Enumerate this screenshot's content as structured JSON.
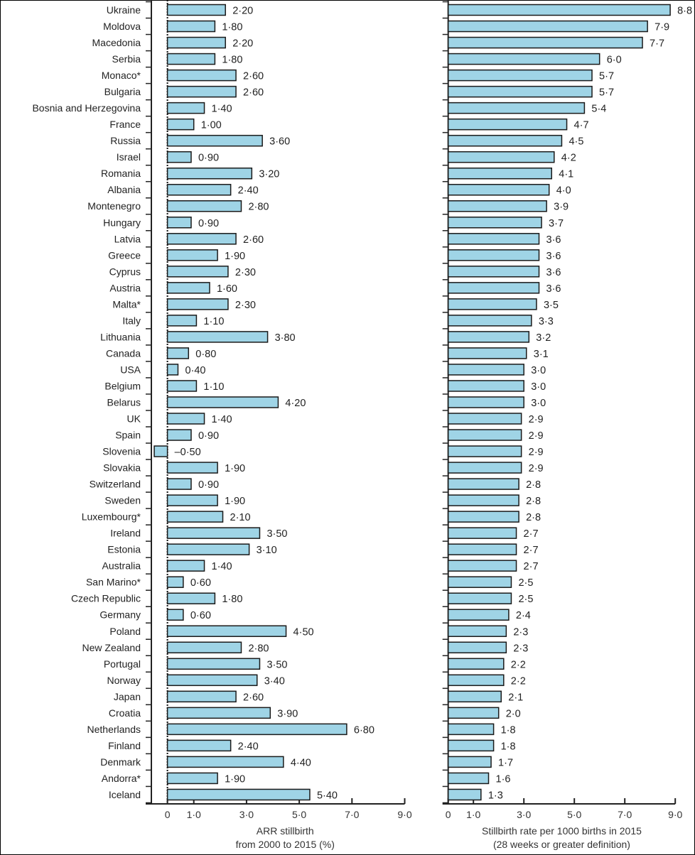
{
  "colors": {
    "bar_fill": "#9fd4e6",
    "bar_stroke": "#1a1a1a",
    "axis": "#222222"
  },
  "chart_data": [
    {
      "type": "bar",
      "orientation": "horizontal",
      "xlabel": [
        "ARR stillbirth",
        "from 2000 to 2015 (%)"
      ],
      "xlim": [
        -0.6,
        9.0
      ],
      "xticks": [
        0,
        1,
        3,
        5,
        7,
        9
      ],
      "xtick_labels": [
        "0",
        "1·0",
        "3·0",
        "5·0",
        "7·0",
        "9·0"
      ],
      "categories": [
        "Ukraine",
        "Moldova",
        "Macedonia",
        "Serbia",
        "Monaco*",
        "Bulgaria",
        "Bosnia and Herzegovina",
        "France",
        "Russia",
        "Israel",
        "Romania",
        "Albania",
        "Montenegro",
        "Hungary",
        "Latvia",
        "Greece",
        "Cyprus",
        "Austria",
        "Malta*",
        "Italy",
        "Lithuania",
        "Canada",
        "USA",
        "Belgium",
        "Belarus",
        "UK",
        "Spain",
        "Slovenia",
        "Slovakia",
        "Switzerland",
        "Sweden",
        "Luxembourg*",
        "Ireland",
        "Estonia",
        "Australia",
        "San Marino*",
        "Czech Republic",
        "Germany",
        "Poland",
        "New Zealand",
        "Portugal",
        "Norway",
        "Japan",
        "Croatia",
        "Netherlands",
        "Finland",
        "Denmark",
        "Andorra*",
        "Iceland"
      ],
      "values": [
        2.2,
        1.8,
        2.2,
        1.8,
        2.6,
        2.6,
        1.4,
        1.0,
        3.6,
        0.9,
        3.2,
        2.4,
        2.8,
        0.9,
        2.6,
        1.9,
        2.3,
        1.6,
        2.3,
        1.1,
        3.8,
        0.8,
        0.4,
        1.1,
        4.2,
        1.4,
        0.9,
        -0.5,
        1.9,
        0.9,
        1.9,
        2.1,
        3.5,
        3.1,
        1.4,
        0.6,
        1.8,
        0.6,
        4.5,
        2.8,
        3.5,
        3.4,
        2.6,
        3.9,
        6.8,
        2.4,
        4.4,
        1.9,
        5.4
      ],
      "value_labels": [
        "2·20",
        "1·80",
        "2·20",
        "1·80",
        "2·60",
        "2·60",
        "1·40",
        "1·00",
        "3·60",
        "0·90",
        "3·20",
        "2·40",
        "2·80",
        "0·90",
        "2·60",
        "1·90",
        "2·30",
        "1·60",
        "2·30",
        "1·10",
        "3·80",
        "0·80",
        "0·40",
        "1·10",
        "4·20",
        "1·40",
        "0·90",
        "–0·50",
        "1·90",
        "0·90",
        "1·90",
        "2·10",
        "3·50",
        "3·10",
        "1·40",
        "0·60",
        "1·80",
        "0·60",
        "4·50",
        "2·80",
        "3·50",
        "3·40",
        "2·60",
        "3·90",
        "6·80",
        "2·40",
        "4·40",
        "1·90",
        "5·40"
      ],
      "zero_line": "dotted"
    },
    {
      "type": "bar",
      "orientation": "horizontal",
      "xlabel": [
        "Stillbirth rate per 1000 births in 2015",
        "(28 weeks or greater definition)"
      ],
      "xlim": [
        0,
        9.0
      ],
      "xticks": [
        0,
        1,
        3,
        5,
        7,
        9
      ],
      "xtick_labels": [
        "0",
        "1·0",
        "3·0",
        "5·0",
        "7·0",
        "9·0"
      ],
      "values": [
        8.8,
        7.9,
        7.7,
        6.0,
        5.7,
        5.7,
        5.4,
        4.7,
        4.5,
        4.2,
        4.1,
        4.0,
        3.9,
        3.7,
        3.6,
        3.6,
        3.6,
        3.6,
        3.5,
        3.3,
        3.2,
        3.1,
        3.0,
        3.0,
        3.0,
        2.9,
        2.9,
        2.9,
        2.9,
        2.8,
        2.8,
        2.8,
        2.7,
        2.7,
        2.7,
        2.5,
        2.5,
        2.4,
        2.3,
        2.3,
        2.2,
        2.2,
        2.1,
        2.0,
        1.8,
        1.8,
        1.7,
        1.6,
        1.3
      ],
      "value_labels": [
        "8·8",
        "7·9",
        "7·7",
        "6·0",
        "5·7",
        "5·7",
        "5·4",
        "4·7",
        "4·5",
        "4·2",
        "4·1",
        "4·0",
        "3·9",
        "3·7",
        "3·6",
        "3·6",
        "3·6",
        "3·6",
        "3·5",
        "3·3",
        "3·2",
        "3·1",
        "3·0",
        "3·0",
        "3·0",
        "2·9",
        "2·9",
        "2·9",
        "2·9",
        "2·8",
        "2·8",
        "2·8",
        "2·7",
        "2·7",
        "2·7",
        "2·5",
        "2·5",
        "2·4",
        "2·3",
        "2·3",
        "2·2",
        "2·2",
        "2·1",
        "2·0",
        "1·8",
        "1·8",
        "1·7",
        "1·6",
        "1·3"
      ]
    }
  ]
}
